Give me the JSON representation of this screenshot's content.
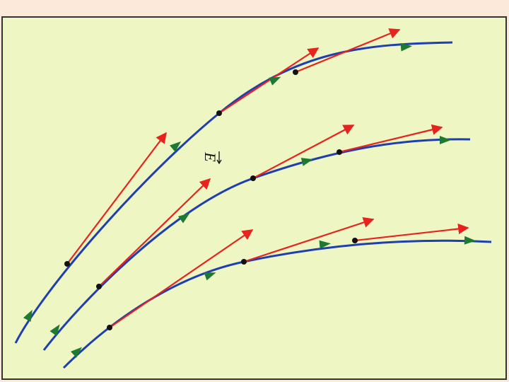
{
  "diagram": {
    "label": "E"
  }
}
